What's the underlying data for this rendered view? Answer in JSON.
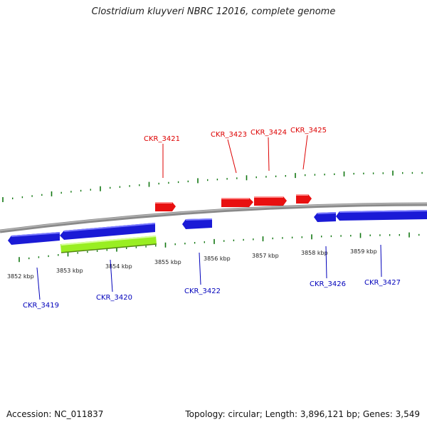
{
  "title": "Clostridium kluyveri NBRC 12016, complete genome",
  "footer": {
    "accession": "Accession: NC_011837",
    "summary": "Topology: circular; Length: 3,896,121 bp; Genes: 3,549"
  },
  "colors": {
    "forward_label": "#dd0000",
    "reverse_label": "#0000bb",
    "forward_gene": "#ee1111",
    "reverse_gene": "#1a1ad0",
    "highlight_gene": "#99ee22",
    "ticks": "#117711",
    "backbone": "#888888"
  },
  "scale_labels": [
    "3852 kbp",
    "3853 kbp",
    "3854 kbp",
    "3855 kbp",
    "3856 kbp",
    "3857 kbp",
    "3858 kbp",
    "3859 kbp"
  ],
  "genes": {
    "forward": [
      {
        "name": "CKR_3421"
      },
      {
        "name": "CKR_3423"
      },
      {
        "name": "CKR_3424"
      },
      {
        "name": "CKR_3425"
      }
    ],
    "reverse": [
      {
        "name": "CKR_3419"
      },
      {
        "name": "CKR_3420"
      },
      {
        "name": "CKR_3422"
      },
      {
        "name": "CKR_3426"
      },
      {
        "name": "CKR_3427"
      }
    ]
  }
}
